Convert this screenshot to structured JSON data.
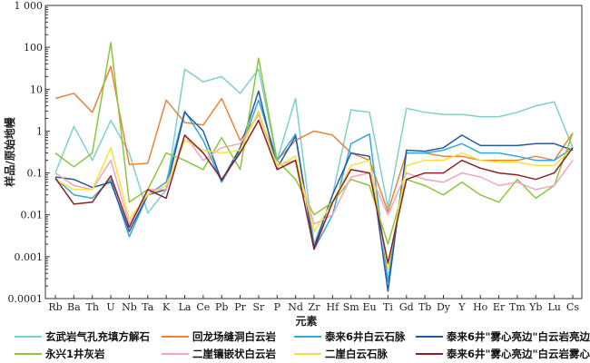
{
  "chart_data": {
    "type": "line",
    "xlabel": "元素",
    "ylabel": "样品/原始地幔",
    "yscale": "log",
    "ylim": [
      0.0001,
      1000
    ],
    "yticks": [
      "0.0001",
      "0.001",
      "0.01",
      "0.1",
      "1",
      "10",
      "100",
      "1 000"
    ],
    "grid": false,
    "legend_position": "bottom",
    "categories": [
      "Rb",
      "Ba",
      "Th",
      "U",
      "Nb",
      "Ta",
      "K",
      "La",
      "Ce",
      "Pb",
      "Pr",
      "Sr",
      "P",
      "Nd",
      "Zr",
      "Hf",
      "Sm",
      "Eu",
      "Ti",
      "Gd",
      "Tb",
      "Dy",
      "Y",
      "Ho",
      "Er",
      "Tm",
      "Yb",
      "Lu",
      "Cs"
    ],
    "series": [
      {
        "name": "玄武岩气孔充填方解石",
        "color": "#7fd0cc",
        "values": [
          0.1,
          1.3,
          0.2,
          1.8,
          0.3,
          0.011,
          0.04,
          30,
          15,
          20,
          8,
          30,
          0.2,
          6,
          0.002,
          0.03,
          3.2,
          2.8,
          0.015,
          3.5,
          2.8,
          2.5,
          2.5,
          2.2,
          2.2,
          2.8,
          4,
          5,
          0.4
        ]
      },
      {
        "name": "回龙场缝洞白云岩",
        "color": "#e8843a",
        "values": [
          6,
          8,
          2.8,
          35,
          0.16,
          0.17,
          5.5,
          1.6,
          1.4,
          6,
          0.6,
          2.5,
          0.2,
          0.6,
          1,
          0.8,
          0.3,
          0.2,
          0.012,
          0.3,
          0.3,
          0.25,
          0.25,
          0.2,
          0.2,
          0.2,
          0.25,
          0.2,
          0.9
        ]
      },
      {
        "name": "泰来6井白云石脉",
        "color": "#34a8dc",
        "values": [
          0.075,
          0.03,
          0.025,
          0.07,
          0.003,
          0.03,
          0.06,
          3,
          0.6,
          0.06,
          0.35,
          5.5,
          0.2,
          0.85,
          0.0015,
          0.01,
          0.5,
          0.85,
          0.00025,
          0.3,
          0.3,
          0.35,
          0.5,
          0.3,
          0.3,
          0.25,
          0.2,
          0.2,
          0.4
        ]
      },
      {
        "name": "泰来6井\"雾心亮边\"白云岩亮边",
        "color": "#2659a3",
        "values": [
          0.08,
          0.07,
          0.045,
          0.06,
          0.004,
          0.03,
          0.04,
          2.8,
          1,
          0.065,
          0.4,
          9,
          0.13,
          0.75,
          0.0017,
          0.03,
          0.3,
          0.25,
          0.00015,
          0.35,
          0.33,
          0.4,
          0.8,
          0.45,
          0.45,
          0.45,
          0.5,
          0.5,
          0.35
        ]
      },
      {
        "name": "永兴1井灰岩",
        "color": "#8cc63e",
        "values": [
          0.3,
          0.14,
          0.3,
          130,
          0.02,
          0.04,
          0.3,
          0.2,
          0.12,
          0.7,
          0.12,
          55,
          0.2,
          0.07,
          0.01,
          0.02,
          0.07,
          0.05,
          0.002,
          0.07,
          0.05,
          0.03,
          0.06,
          0.03,
          0.02,
          0.07,
          0.025,
          0.05,
          0.9
        ]
      },
      {
        "name": "二崖镶嵌状白云岩",
        "color": "#f0a6bc",
        "values": [
          0.1,
          0.05,
          0.04,
          0.2,
          0.006,
          0.04,
          0.04,
          0.8,
          0.2,
          0.4,
          0.5,
          2.5,
          0.15,
          0.2,
          0.006,
          0.01,
          0.08,
          0.1,
          0.01,
          0.1,
          0.07,
          0.06,
          0.1,
          0.08,
          0.05,
          0.06,
          0.04,
          0.05,
          0.2
        ]
      },
      {
        "name": "二崖白云石脉",
        "color": "#f6e23a",
        "values": [
          0.07,
          0.04,
          0.04,
          0.4,
          0.008,
          0.03,
          0.05,
          0.6,
          0.35,
          0.3,
          0.35,
          3,
          0.14,
          0.25,
          0.004,
          0.02,
          0.15,
          0.2,
          0.0005,
          0.15,
          0.2,
          0.2,
          0.3,
          0.2,
          0.18,
          0.18,
          0.15,
          0.15,
          0.4
        ]
      },
      {
        "name": "泰来6井\"雾心亮边\"白云岩雾心",
        "color": "#8a2225",
        "values": [
          0.075,
          0.018,
          0.02,
          0.085,
          0.005,
          0.04,
          0.025,
          0.8,
          0.3,
          0.07,
          0.3,
          1.8,
          0.12,
          0.2,
          0.0015,
          0.02,
          0.12,
          0.1,
          0.0007,
          0.07,
          0.1,
          0.1,
          0.2,
          0.13,
          0.1,
          0.09,
          0.07,
          0.1,
          0.4
        ]
      }
    ]
  }
}
